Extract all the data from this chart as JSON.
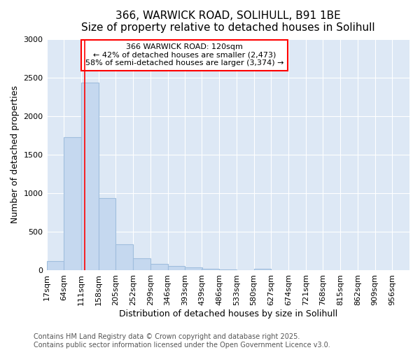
{
  "title_line1": "366, WARWICK ROAD, SOLIHULL, B91 1BE",
  "title_line2": "Size of property relative to detached houses in Solihull",
  "xlabel": "Distribution of detached houses by size in Solihull",
  "ylabel": "Number of detached properties",
  "footnote_line1": "Contains HM Land Registry data © Crown copyright and database right 2025.",
  "footnote_line2": "Contains public sector information licensed under the Open Government Licence v3.0.",
  "annotation_line1": "366 WARWICK ROAD: 120sqm",
  "annotation_line2": "← 42% of detached houses are smaller (2,473)",
  "annotation_line3": "58% of semi-detached houses are larger (3,374) →",
  "categories": [
    "17sqm",
    "64sqm",
    "111sqm",
    "158sqm",
    "205sqm",
    "252sqm",
    "299sqm",
    "346sqm",
    "393sqm",
    "439sqm",
    "486sqm",
    "533sqm",
    "580sqm",
    "627sqm",
    "674sqm",
    "721sqm",
    "768sqm",
    "815sqm",
    "862sqm",
    "909sqm",
    "956sqm"
  ],
  "bin_starts": [
    17,
    64,
    111,
    158,
    205,
    252,
    299,
    346,
    393,
    439,
    486,
    533,
    580,
    627,
    674,
    721,
    768,
    815,
    862,
    909,
    956
  ],
  "bin_width": 47,
  "values": [
    120,
    1730,
    2430,
    940,
    340,
    160,
    85,
    60,
    40,
    18,
    12,
    8,
    20,
    0,
    0,
    0,
    0,
    0,
    0,
    0,
    0
  ],
  "bar_color": "#c5d8ef",
  "bar_edge_color": "#a0bedd",
  "red_line_x": 120,
  "ylim": [
    0,
    3000
  ],
  "yticks": [
    0,
    500,
    1000,
    1500,
    2000,
    2500,
    3000
  ],
  "plot_bg_color": "#dde8f5",
  "figure_bg_color": "#ffffff",
  "grid_color": "#ffffff",
  "title_fontsize": 11,
  "subtitle_fontsize": 10,
  "axis_label_fontsize": 9,
  "tick_fontsize": 8,
  "footnote_fontsize": 7,
  "annotation_fontsize": 8
}
